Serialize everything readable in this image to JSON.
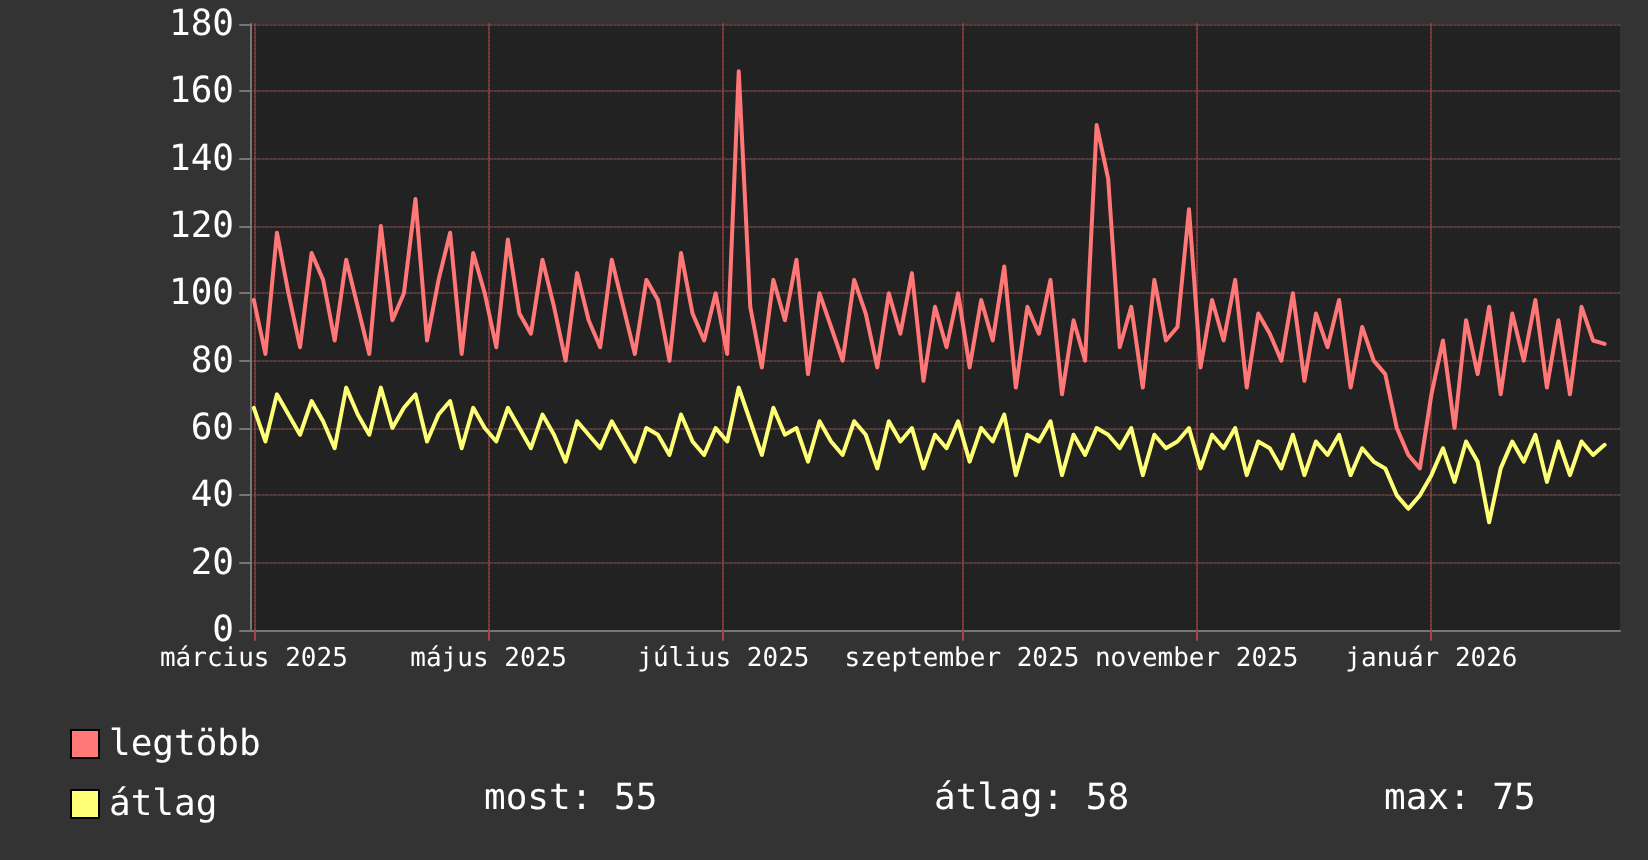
{
  "chart_data": {
    "type": "line",
    "x": [
      "2025-03-01",
      "2025-03-04",
      "2025-03-07",
      "2025-03-10",
      "2025-03-13",
      "2025-03-16",
      "2025-03-19",
      "2025-03-22",
      "2025-03-25",
      "2025-03-28",
      "2025-03-31",
      "2025-04-03",
      "2025-04-06",
      "2025-04-09",
      "2025-04-12",
      "2025-04-15",
      "2025-04-18",
      "2025-04-21",
      "2025-04-24",
      "2025-04-27",
      "2025-04-30",
      "2025-05-03",
      "2025-05-06",
      "2025-05-09",
      "2025-05-12",
      "2025-05-15",
      "2025-05-18",
      "2025-05-21",
      "2025-05-24",
      "2025-05-27",
      "2025-05-30",
      "2025-06-02",
      "2025-06-05",
      "2025-06-08",
      "2025-06-11",
      "2025-06-14",
      "2025-06-17",
      "2025-06-20",
      "2025-06-23",
      "2025-06-26",
      "2025-06-29",
      "2025-07-02",
      "2025-07-05",
      "2025-07-08",
      "2025-07-11",
      "2025-07-14",
      "2025-07-17",
      "2025-07-20",
      "2025-07-23",
      "2025-07-26",
      "2025-07-29",
      "2025-08-01",
      "2025-08-04",
      "2025-08-07",
      "2025-08-10",
      "2025-08-13",
      "2025-08-16",
      "2025-08-19",
      "2025-08-22",
      "2025-08-25",
      "2025-08-28",
      "2025-08-31",
      "2025-09-03",
      "2025-09-06",
      "2025-09-09",
      "2025-09-12",
      "2025-09-15",
      "2025-09-18",
      "2025-09-21",
      "2025-09-24",
      "2025-09-27",
      "2025-09-30",
      "2025-10-03",
      "2025-10-06",
      "2025-10-09",
      "2025-10-12",
      "2025-10-15",
      "2025-10-18",
      "2025-10-21",
      "2025-10-24",
      "2025-10-27",
      "2025-10-30",
      "2025-11-02",
      "2025-11-05",
      "2025-11-08",
      "2025-11-11",
      "2025-11-14",
      "2025-11-17",
      "2025-11-20",
      "2025-11-23",
      "2025-11-26",
      "2025-11-29",
      "2025-12-02",
      "2025-12-05",
      "2025-12-08",
      "2025-12-11",
      "2025-12-14",
      "2025-12-17",
      "2025-12-20",
      "2025-12-23",
      "2025-12-26",
      "2025-12-29",
      "2026-01-01",
      "2026-01-04",
      "2026-01-07",
      "2026-01-10",
      "2026-01-13",
      "2026-01-16",
      "2026-01-19",
      "2026-01-22",
      "2026-01-25",
      "2026-01-28",
      "2026-01-31",
      "2026-02-03",
      "2026-02-06",
      "2026-02-09",
      "2026-02-12",
      "2026-02-15"
    ],
    "series": [
      {
        "name": "legtöbb",
        "color": "#ff7777",
        "values": [
          98,
          82,
          118,
          100,
          84,
          112,
          104,
          86,
          110,
          96,
          82,
          120,
          92,
          100,
          128,
          86,
          104,
          118,
          82,
          112,
          100,
          84,
          116,
          94,
          88,
          110,
          96,
          80,
          106,
          92,
          84,
          110,
          96,
          82,
          104,
          98,
          80,
          112,
          94,
          86,
          100,
          82,
          166,
          96,
          78,
          104,
          92,
          110,
          76,
          100,
          90,
          80,
          104,
          94,
          78,
          100,
          88,
          106,
          74,
          96,
          84,
          100,
          78,
          98,
          86,
          108,
          72,
          96,
          88,
          104,
          70,
          92,
          80,
          150,
          134,
          84,
          96,
          72,
          104,
          86,
          90,
          125,
          78,
          98,
          86,
          104,
          72,
          94,
          88,
          80,
          100,
          74,
          94,
          84,
          98,
          72,
          90,
          80,
          76,
          60,
          52,
          48,
          70,
          86,
          60,
          92,
          76,
          96,
          70,
          94,
          80,
          98,
          72,
          92,
          70,
          96,
          86,
          85
        ]
      },
      {
        "name": "átlag",
        "color": "#ffff77",
        "values": [
          66,
          56,
          70,
          64,
          58,
          68,
          62,
          54,
          72,
          64,
          58,
          72,
          60,
          66,
          70,
          56,
          64,
          68,
          54,
          66,
          60,
          56,
          66,
          60,
          54,
          64,
          58,
          50,
          62,
          58,
          54,
          62,
          56,
          50,
          60,
          58,
          52,
          64,
          56,
          52,
          60,
          56,
          72,
          62,
          52,
          66,
          58,
          60,
          50,
          62,
          56,
          52,
          62,
          58,
          48,
          62,
          56,
          60,
          48,
          58,
          54,
          62,
          50,
          60,
          56,
          64,
          46,
          58,
          56,
          62,
          46,
          58,
          52,
          60,
          58,
          54,
          60,
          46,
          58,
          54,
          56,
          60,
          48,
          58,
          54,
          60,
          46,
          56,
          54,
          48,
          58,
          46,
          56,
          52,
          58,
          46,
          54,
          50,
          48,
          40,
          36,
          40,
          46,
          54,
          44,
          56,
          50,
          32,
          48,
          56,
          50,
          58,
          44,
          56,
          46,
          56,
          52,
          55
        ]
      }
    ],
    "xlim": [
      "2025-02-28",
      "2026-02-19"
    ],
    "xticks": [
      {
        "value": "2025-03-01",
        "label": "március 2025"
      },
      {
        "value": "2025-05-01",
        "label": "május 2025"
      },
      {
        "value": "2025-07-01",
        "label": "július 2025"
      },
      {
        "value": "2025-09-01",
        "label": "szeptember 2025"
      },
      {
        "value": "2025-11-01",
        "label": "november 2025"
      },
      {
        "value": "2026-01-01",
        "label": "január 2026"
      }
    ],
    "ylim": [
      0,
      180
    ],
    "yticks": [
      0,
      20,
      40,
      60,
      80,
      100,
      120,
      140,
      160,
      180
    ],
    "grid": true,
    "legend": "bottom left",
    "marker": "none",
    "line_style": "solid",
    "annotations": [
      "most: 55",
      "átlag: 58",
      "max: 75"
    ]
  }
}
